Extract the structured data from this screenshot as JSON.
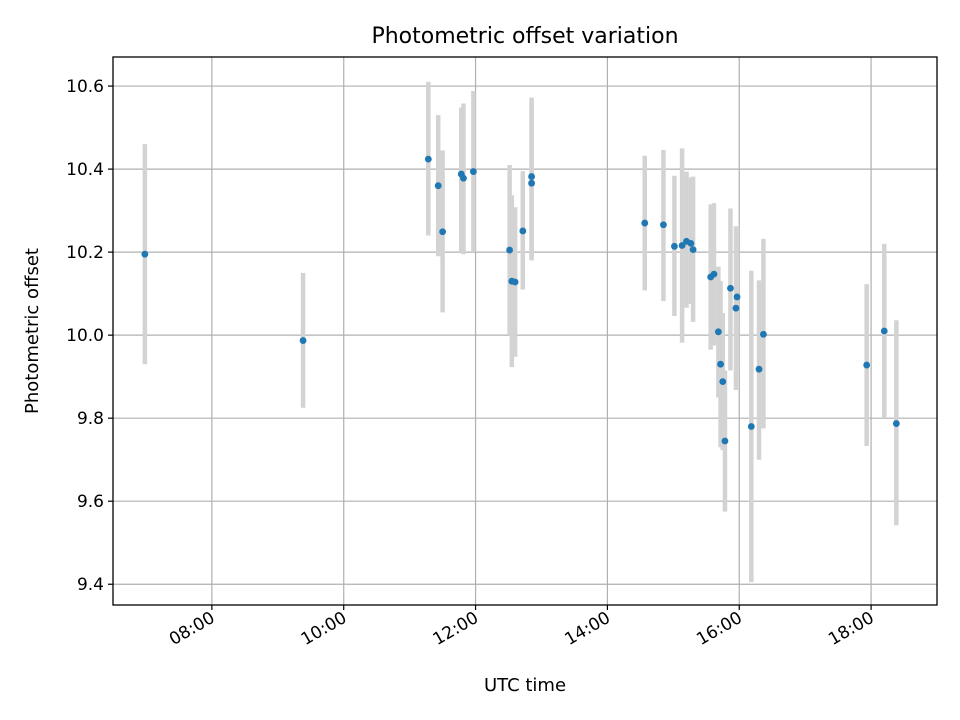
{
  "chart_data": {
    "type": "scatter",
    "title": "Photometric offset variation",
    "xlabel": "UTC time",
    "ylabel": "Photometric offset",
    "xlim": [
      "06:30",
      "19:00"
    ],
    "ylim": [
      9.35,
      10.67
    ],
    "x_ticks": [
      "08:00",
      "10:00",
      "12:00",
      "14:00",
      "16:00",
      "18:00"
    ],
    "y_ticks": [
      "9.4",
      "9.6",
      "9.8",
      "10.0",
      "10.2",
      "10.4",
      "10.6"
    ],
    "grid": true,
    "colors": {
      "point": "#1f77b4",
      "errorbar": "#d3d3d3"
    },
    "points": [
      {
        "x": "06:59",
        "y": 10.195,
        "ylow": 9.93,
        "yhigh": 10.46
      },
      {
        "x": "09:23",
        "y": 9.987,
        "ylow": 9.825,
        "yhigh": 10.15
      },
      {
        "x": "11:17",
        "y": 10.424,
        "ylow": 10.24,
        "yhigh": 10.61
      },
      {
        "x": "11:26",
        "y": 10.36,
        "ylow": 10.19,
        "yhigh": 10.53
      },
      {
        "x": "11:30",
        "y": 10.249,
        "ylow": 10.055,
        "yhigh": 10.445
      },
      {
        "x": "11:47",
        "y": 10.388,
        "ylow": 10.2,
        "yhigh": 10.548
      },
      {
        "x": "11:49",
        "y": 10.378,
        "ylow": 10.195,
        "yhigh": 10.558
      },
      {
        "x": "11:58",
        "y": 10.394,
        "ylow": 10.2,
        "yhigh": 10.588
      },
      {
        "x": "12:31",
        "y": 10.205,
        "ylow": 10.0,
        "yhigh": 10.41
      },
      {
        "x": "12:33",
        "y": 10.13,
        "ylow": 9.923,
        "yhigh": 10.337
      },
      {
        "x": "12:36",
        "y": 10.128,
        "ylow": 9.948,
        "yhigh": 10.308
      },
      {
        "x": "12:43",
        "y": 10.251,
        "ylow": 10.11,
        "yhigh": 10.395
      },
      {
        "x": "12:51",
        "y": 10.382,
        "ylow": 10.18,
        "yhigh": 10.572
      },
      {
        "x": "12:51",
        "y": 10.366,
        "ylow": 10.18,
        "yhigh": 10.56
      },
      {
        "x": "14:34",
        "y": 10.27,
        "ylow": 10.108,
        "yhigh": 10.432
      },
      {
        "x": "14:51",
        "y": 10.266,
        "ylow": 10.082,
        "yhigh": 10.446
      },
      {
        "x": "15:01",
        "y": 10.214,
        "ylow": 10.046,
        "yhigh": 10.384
      },
      {
        "x": "15:08",
        "y": 10.216,
        "ylow": 9.982,
        "yhigh": 10.45
      },
      {
        "x": "15:12",
        "y": 10.226,
        "ylow": 10.066,
        "yhigh": 10.394
      },
      {
        "x": "15:16",
        "y": 10.221,
        "ylow": 10.075,
        "yhigh": 10.38
      },
      {
        "x": "15:18",
        "y": 10.206,
        "ylow": 10.032,
        "yhigh": 10.382
      },
      {
        "x": "15:34",
        "y": 10.14,
        "ylow": 9.965,
        "yhigh": 10.315
      },
      {
        "x": "15:37",
        "y": 10.147,
        "ylow": 9.975,
        "yhigh": 10.318
      },
      {
        "x": "15:41",
        "y": 10.008,
        "ylow": 9.85,
        "yhigh": 10.165
      },
      {
        "x": "15:43",
        "y": 9.93,
        "ylow": 9.73,
        "yhigh": 10.13
      },
      {
        "x": "15:45",
        "y": 9.888,
        "ylow": 9.723,
        "yhigh": 10.053
      },
      {
        "x": "15:47",
        "y": 9.745,
        "ylow": 9.575,
        "yhigh": 9.915
      },
      {
        "x": "15:52",
        "y": 10.113,
        "ylow": 9.915,
        "yhigh": 10.305
      },
      {
        "x": "15:57",
        "y": 10.065,
        "ylow": 9.868,
        "yhigh": 10.262
      },
      {
        "x": "15:58",
        "y": 10.092,
        "ylow": 9.92,
        "yhigh": 10.262
      },
      {
        "x": "16:11",
        "y": 9.78,
        "ylow": 9.405,
        "yhigh": 10.155
      },
      {
        "x": "16:18",
        "y": 9.918,
        "ylow": 9.7,
        "yhigh": 10.132
      },
      {
        "x": "16:22",
        "y": 10.002,
        "ylow": 9.775,
        "yhigh": 10.232
      },
      {
        "x": "17:56",
        "y": 9.928,
        "ylow": 9.733,
        "yhigh": 10.123
      },
      {
        "x": "18:12",
        "y": 10.01,
        "ylow": 9.8,
        "yhigh": 10.22
      },
      {
        "x": "18:23",
        "y": 9.787,
        "ylow": 9.542,
        "yhigh": 10.036
      }
    ]
  }
}
